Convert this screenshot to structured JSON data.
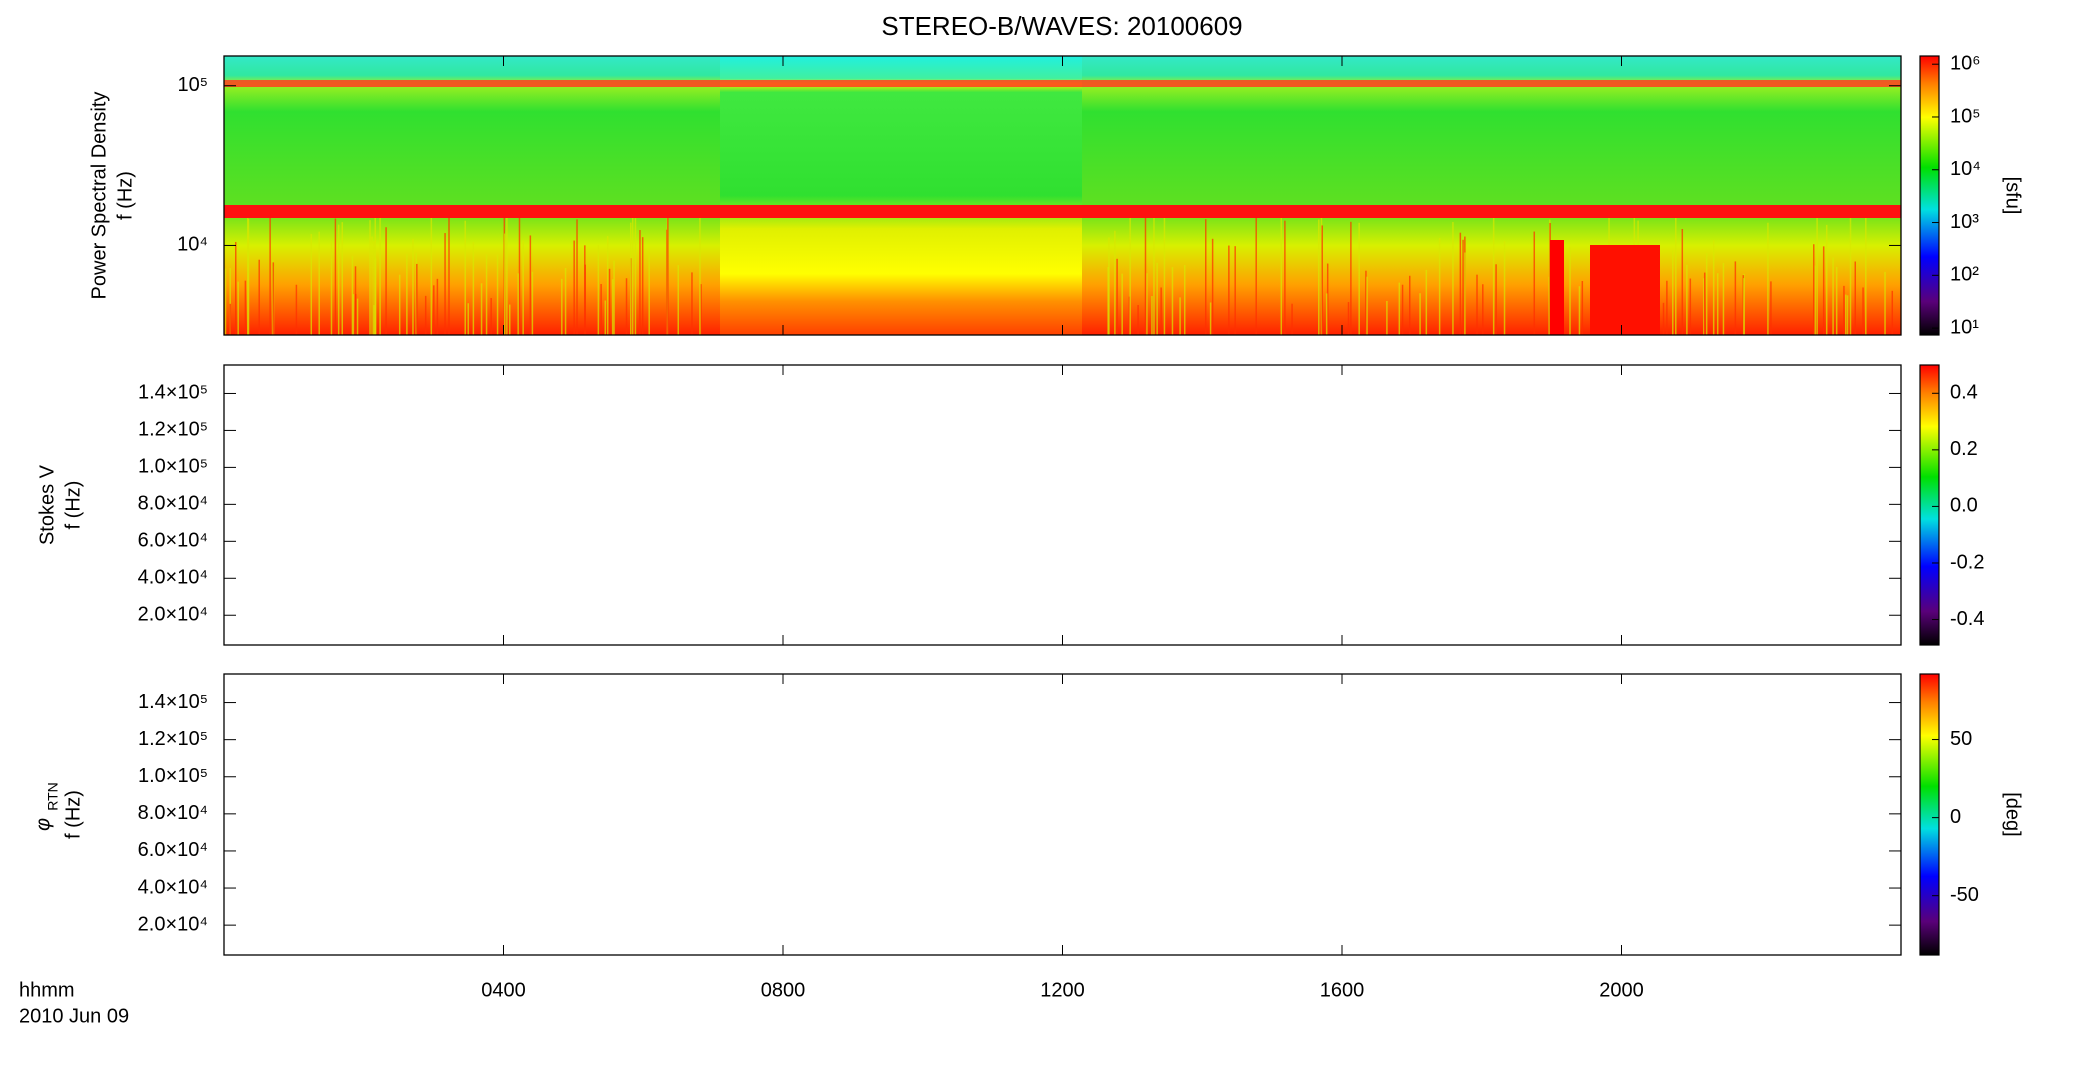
{
  "title": "STEREO-B/WAVES: 20100609",
  "time_label": "hhmm",
  "date_label": "2010 Jun 09",
  "xlim": [
    0,
    24
  ],
  "xticks": [
    {
      "value": 4,
      "label": "0400"
    },
    {
      "value": 8,
      "label": "0800"
    },
    {
      "value": 12,
      "label": "1200"
    },
    {
      "value": 16,
      "label": "1600"
    },
    {
      "value": 20,
      "label": "2000"
    }
  ],
  "chart_data": [
    {
      "type": "heatmap",
      "ylabel": [
        "Power Spectral Density",
        "f (Hz)"
      ],
      "ylog": true,
      "ylim": [
        2750,
        153500
      ],
      "yticks": [
        {
          "value": 10000,
          "label": "10⁴"
        },
        {
          "value": 100000,
          "label": "10⁵"
        }
      ],
      "zlog": true,
      "zlim": [
        7.4,
        1430000
      ],
      "zticks": [
        {
          "value": 10,
          "label": "10¹"
        },
        {
          "value": 100,
          "label": "10²"
        },
        {
          "value": 1000,
          "label": "10³"
        },
        {
          "value": 10000,
          "label": "10⁴"
        },
        {
          "value": 100000,
          "label": "10⁵"
        },
        {
          "value": 1000000,
          "label": "10⁶"
        }
      ],
      "zlabel": "[sfu]"
    },
    {
      "type": "heatmap",
      "ylabel": [
        "Stokes V",
        "f (Hz)"
      ],
      "ylog": false,
      "ylim": [
        3900,
        155400
      ],
      "yticks": [
        {
          "value": 20000,
          "label": "2.0×10⁴"
        },
        {
          "value": 40000,
          "label": "4.0×10⁴"
        },
        {
          "value": 60000,
          "label": "6.0×10⁴"
        },
        {
          "value": 80000,
          "label": "8.0×10⁴"
        },
        {
          "value": 100000,
          "label": "1.0×10⁵"
        },
        {
          "value": 120000,
          "label": "1.2×10⁵"
        },
        {
          "value": 140000,
          "label": "1.4×10⁵"
        }
      ],
      "zlog": false,
      "zlim": [
        -0.49,
        0.5
      ],
      "zticks": [
        -0.4,
        -0.2,
        {
          "value": 0,
          "label": "0.0"
        },
        0.2,
        0.4
      ]
    },
    {
      "type": "heatmap",
      "ylabel_symbol": "φ",
      "ylabel_subscript": "RTN",
      "ylabel": [
        "f (Hz)"
      ],
      "ylog": false,
      "ylim": [
        3900,
        155400
      ],
      "yticks": [
        {
          "value": 20000,
          "label": "2.0×10⁴"
        },
        {
          "value": 40000,
          "label": "4.0×10⁴"
        },
        {
          "value": 60000,
          "label": "6.0×10⁴"
        },
        {
          "value": 80000,
          "label": "8.0×10⁴"
        },
        {
          "value": 100000,
          "label": "1.0×10⁵"
        },
        {
          "value": 120000,
          "label": "1.2×10⁵"
        },
        {
          "value": 140000,
          "label": "1.4×10⁵"
        }
      ],
      "zlog": false,
      "zlim": [
        -88,
        92
      ],
      "zticks": [
        -50,
        0,
        50
      ],
      "zlabel": "[deg]"
    }
  ]
}
